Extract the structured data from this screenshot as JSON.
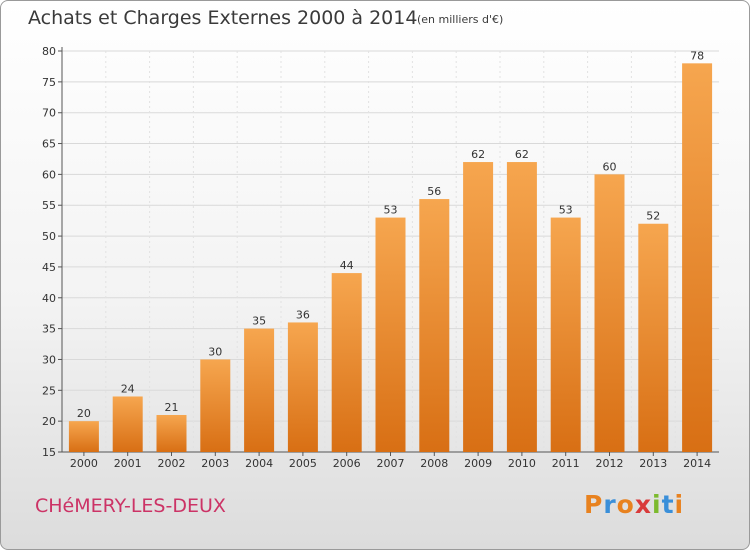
{
  "header": {
    "title": "Achats et Charges Externes 2000 à 2014",
    "subtitle": "(en milliers d'€)"
  },
  "footer": {
    "location": "CHéMERY-LES-DEUX",
    "logo": "Proxiti"
  },
  "colors": {
    "bar_top": "#f6a64f",
    "bar_bottom": "#d86f14",
    "title": "#3a3a3a",
    "location": "#cc3366",
    "logo_letters": [
      "#e8821f",
      "#3a8fd9",
      "#e8821f",
      "#d93b3b",
      "#7cba2e",
      "#3a8fd9",
      "#e8821f"
    ]
  },
  "chart_data": {
    "type": "bar",
    "categories": [
      "2000",
      "2001",
      "2002",
      "2003",
      "2004",
      "2005",
      "2006",
      "2007",
      "2008",
      "2009",
      "2010",
      "2011",
      "2012",
      "2013",
      "2014"
    ],
    "values": [
      20,
      24,
      21,
      30,
      35,
      36,
      44,
      53,
      56,
      62,
      62,
      53,
      60,
      52,
      78
    ],
    "ylim": [
      15,
      80
    ],
    "yticks": [
      15,
      20,
      25,
      30,
      35,
      40,
      45,
      50,
      55,
      60,
      65,
      70,
      75,
      80
    ],
    "grid": true,
    "data_labels": true
  }
}
